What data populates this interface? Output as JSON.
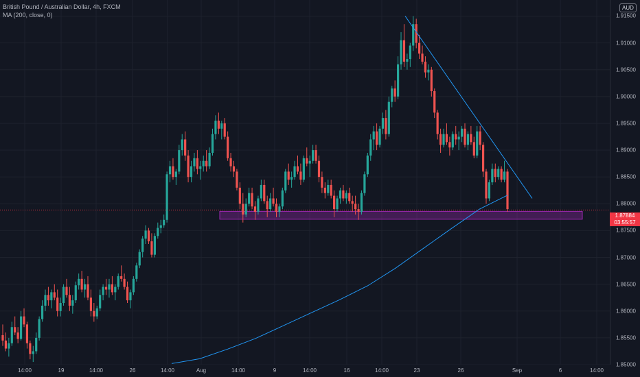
{
  "legend": {
    "symbol": "British Pound / Australian Dollar, 4h, FXCM",
    "indicator": "MA (200, close, 0)"
  },
  "currency_badge": "AUD",
  "last_price": {
    "value": "1.87884",
    "countdown": "03:55:57",
    "color": "#f23645"
  },
  "colors": {
    "up": "#26a69a",
    "down": "#ef5350",
    "ma": "#2196f3",
    "zone": "#9c27b0",
    "trendline": "#2196f3",
    "background": "#131722",
    "grid": "#1e222d"
  },
  "chart_data": {
    "type": "candlestick",
    "y_axis": {
      "ylim": [
        1.85,
        1.918
      ],
      "ticks": [
        "1.85000",
        "1.85500",
        "1.86000",
        "1.86500",
        "1.87000",
        "1.87500",
        "1.88000",
        "1.88500",
        "1.89000",
        "1.89500",
        "1.90000",
        "1.90500",
        "1.91000",
        "1.91500"
      ]
    },
    "x_axis": {
      "ticks": [
        "14:00",
        "19",
        "14:00",
        "26",
        "14:00",
        "Aug",
        "14:00",
        "9",
        "14:00",
        "16",
        "14:00",
        "23",
        "26",
        "Sep",
        "6",
        "14:00"
      ]
    },
    "ohlc": [
      [
        1.8555,
        1.8575,
        1.8535,
        1.8545
      ],
      [
        1.8545,
        1.856,
        1.8525,
        1.853
      ],
      [
        1.853,
        1.855,
        1.8515,
        1.854
      ],
      [
        1.854,
        1.858,
        1.8535,
        1.857
      ],
      [
        1.857,
        1.859,
        1.8555,
        1.856
      ],
      [
        1.856,
        1.857,
        1.854,
        1.8548
      ],
      [
        1.8548,
        1.86,
        1.8545,
        1.859
      ],
      [
        1.859,
        1.8605,
        1.857,
        1.8575
      ],
      [
        1.8575,
        1.858,
        1.853,
        1.854
      ],
      [
        1.854,
        1.8545,
        1.851,
        1.852
      ],
      [
        1.852,
        1.8535,
        1.8505,
        1.8525
      ],
      [
        1.8525,
        1.856,
        1.852,
        1.855
      ],
      [
        1.855,
        1.859,
        1.8545,
        1.8585
      ],
      [
        1.8585,
        1.862,
        1.858,
        1.861
      ],
      [
        1.861,
        1.864,
        1.86,
        1.863
      ],
      [
        1.863,
        1.8645,
        1.861,
        1.862
      ],
      [
        1.862,
        1.864,
        1.8605,
        1.8635
      ],
      [
        1.8635,
        1.865,
        1.862,
        1.8625
      ],
      [
        1.8625,
        1.864,
        1.859,
        1.86
      ],
      [
        1.86,
        1.8625,
        1.859,
        1.8615
      ],
      [
        1.8615,
        1.865,
        1.861,
        1.8645
      ],
      [
        1.8645,
        1.866,
        1.8625,
        1.863
      ],
      [
        1.863,
        1.8645,
        1.86,
        1.861
      ],
      [
        1.861,
        1.863,
        1.8595,
        1.862
      ],
      [
        1.862,
        1.8655,
        1.8615,
        1.8648
      ],
      [
        1.8648,
        1.867,
        1.864,
        1.866
      ],
      [
        1.866,
        1.8675,
        1.8635,
        1.864
      ],
      [
        1.864,
        1.866,
        1.8625,
        1.865
      ],
      [
        1.865,
        1.8665,
        1.862,
        1.8625
      ],
      [
        1.8625,
        1.864,
        1.859,
        1.86
      ],
      [
        1.86,
        1.8615,
        1.858,
        1.859
      ],
      [
        1.859,
        1.861,
        1.8585,
        1.8605
      ],
      [
        1.8605,
        1.864,
        1.86,
        1.863
      ],
      [
        1.863,
        1.865,
        1.862,
        1.8645
      ],
      [
        1.8645,
        1.866,
        1.863,
        1.864
      ],
      [
        1.864,
        1.866,
        1.8625,
        1.865
      ],
      [
        1.865,
        1.8665,
        1.863,
        1.8635
      ],
      [
        1.8635,
        1.865,
        1.862,
        1.8645
      ],
      [
        1.8645,
        1.867,
        1.864,
        1.8665
      ],
      [
        1.8665,
        1.8685,
        1.8655,
        1.866
      ],
      [
        1.866,
        1.867,
        1.864,
        1.8645
      ],
      [
        1.8645,
        1.8655,
        1.8615,
        1.862
      ],
      [
        1.862,
        1.864,
        1.8605,
        1.8635
      ],
      [
        1.8635,
        1.8665,
        1.863,
        1.866
      ],
      [
        1.866,
        1.869,
        1.8655,
        1.8685
      ],
      [
        1.8685,
        1.8715,
        1.868,
        1.871
      ],
      [
        1.871,
        1.874,
        1.87,
        1.8735
      ],
      [
        1.8735,
        1.876,
        1.8725,
        1.875
      ],
      [
        1.875,
        1.8755,
        1.8725,
        1.873
      ],
      [
        1.873,
        1.8745,
        1.87,
        1.8705
      ],
      [
        1.8705,
        1.8745,
        1.87,
        1.874
      ],
      [
        1.874,
        1.8765,
        1.8735,
        1.8755
      ],
      [
        1.8755,
        1.877,
        1.8745,
        1.876
      ],
      [
        1.876,
        1.878,
        1.8755,
        1.877
      ],
      [
        1.877,
        1.886,
        1.8765,
        1.8855
      ],
      [
        1.8855,
        1.888,
        1.884,
        1.887
      ],
      [
        1.887,
        1.8885,
        1.8845,
        1.885
      ],
      [
        1.885,
        1.8865,
        1.8835,
        1.886
      ],
      [
        1.886,
        1.891,
        1.8855,
        1.89
      ],
      [
        1.89,
        1.893,
        1.889,
        1.892
      ],
      [
        1.892,
        1.8935,
        1.888,
        1.889
      ],
      [
        1.889,
        1.89,
        1.884,
        1.885
      ],
      [
        1.885,
        1.888,
        1.884,
        1.887
      ],
      [
        1.887,
        1.8895,
        1.886,
        1.8885
      ],
      [
        1.8885,
        1.89,
        1.8855,
        1.8865
      ],
      [
        1.8865,
        1.888,
        1.8845,
        1.887
      ],
      [
        1.887,
        1.889,
        1.886,
        1.888
      ],
      [
        1.888,
        1.89,
        1.886,
        1.887
      ],
      [
        1.887,
        1.8905,
        1.8865,
        1.8895
      ],
      [
        1.8895,
        1.894,
        1.889,
        1.893
      ],
      [
        1.893,
        1.8965,
        1.892,
        1.8955
      ],
      [
        1.8955,
        1.897,
        1.893,
        1.894
      ],
      [
        1.894,
        1.8955,
        1.892,
        1.895
      ],
      [
        1.895,
        1.896,
        1.892,
        1.8925
      ],
      [
        1.8925,
        1.8935,
        1.888,
        1.8885
      ],
      [
        1.8885,
        1.8895,
        1.886,
        1.887
      ],
      [
        1.887,
        1.888,
        1.885,
        1.886
      ],
      [
        1.886,
        1.8865,
        1.8825,
        1.883
      ],
      [
        1.883,
        1.884,
        1.879,
        1.88
      ],
      [
        1.88,
        1.882,
        1.8765,
        1.878
      ],
      [
        1.878,
        1.881,
        1.8775,
        1.88
      ],
      [
        1.88,
        1.883,
        1.8795,
        1.882
      ],
      [
        1.882,
        1.883,
        1.879,
        1.8795
      ],
      [
        1.8795,
        1.8805,
        1.877,
        1.8785
      ],
      [
        1.8785,
        1.8815,
        1.878,
        1.881
      ],
      [
        1.881,
        1.8845,
        1.8805,
        1.8835
      ],
      [
        1.8835,
        1.8845,
        1.88,
        1.8805
      ],
      [
        1.8805,
        1.8815,
        1.8775,
        1.879
      ],
      [
        1.879,
        1.882,
        1.8785,
        1.881
      ],
      [
        1.881,
        1.883,
        1.8795,
        1.88
      ],
      [
        1.88,
        1.881,
        1.8775,
        1.8785
      ],
      [
        1.8785,
        1.88,
        1.8775,
        1.8795
      ],
      [
        1.8795,
        1.883,
        1.879,
        1.8825
      ],
      [
        1.8825,
        1.8865,
        1.882,
        1.886
      ],
      [
        1.886,
        1.8875,
        1.8835,
        1.8845
      ],
      [
        1.8845,
        1.886,
        1.883,
        1.885
      ],
      [
        1.885,
        1.888,
        1.8845,
        1.887
      ],
      [
        1.887,
        1.889,
        1.8855,
        1.886
      ],
      [
        1.886,
        1.8875,
        1.8835,
        1.8845
      ],
      [
        1.8845,
        1.889,
        1.884,
        1.8885
      ],
      [
        1.8885,
        1.8905,
        1.887,
        1.8875
      ],
      [
        1.8875,
        1.889,
        1.885,
        1.888
      ],
      [
        1.888,
        1.891,
        1.8875,
        1.89
      ],
      [
        1.89,
        1.891,
        1.8875,
        1.888
      ],
      [
        1.888,
        1.889,
        1.884,
        1.885
      ],
      [
        1.885,
        1.886,
        1.882,
        1.883
      ],
      [
        1.883,
        1.884,
        1.881,
        1.882
      ],
      [
        1.882,
        1.8845,
        1.8815,
        1.8835
      ],
      [
        1.8835,
        1.8845,
        1.881,
        1.8815
      ],
      [
        1.8815,
        1.8825,
        1.8775,
        1.879
      ],
      [
        1.879,
        1.8815,
        1.8785,
        1.881
      ],
      [
        1.881,
        1.883,
        1.88,
        1.8825
      ],
      [
        1.8825,
        1.8835,
        1.8805,
        1.881
      ],
      [
        1.881,
        1.8825,
        1.88,
        1.882
      ],
      [
        1.882,
        1.883,
        1.88,
        1.8805
      ],
      [
        1.8805,
        1.8815,
        1.8785,
        1.88
      ],
      [
        1.88,
        1.8815,
        1.878,
        1.879
      ],
      [
        1.879,
        1.88,
        1.877,
        1.8785
      ],
      [
        1.8785,
        1.8825,
        1.878,
        1.882
      ],
      [
        1.882,
        1.886,
        1.8815,
        1.8855
      ],
      [
        1.8855,
        1.8895,
        1.885,
        1.889
      ],
      [
        1.889,
        1.893,
        1.888,
        1.892
      ],
      [
        1.892,
        1.8945,
        1.89,
        1.8935
      ],
      [
        1.8935,
        1.895,
        1.89,
        1.891
      ],
      [
        1.891,
        1.8945,
        1.8905,
        1.894
      ],
      [
        1.894,
        1.897,
        1.893,
        1.896
      ],
      [
        1.896,
        1.8975,
        1.892,
        1.893
      ],
      [
        1.893,
        1.9,
        1.8925,
        1.899
      ],
      [
        1.899,
        1.902,
        1.898,
        1.9015
      ],
      [
        1.9015,
        1.903,
        1.899,
        1.9
      ],
      [
        1.9,
        1.9075,
        1.8995,
        1.906
      ],
      [
        1.906,
        1.912,
        1.905,
        1.9105
      ],
      [
        1.9105,
        1.9135,
        1.9055,
        1.9065
      ],
      [
        1.9065,
        1.908,
        1.905,
        1.907
      ],
      [
        1.907,
        1.91,
        1.9055,
        1.9095
      ],
      [
        1.9095,
        1.915,
        1.9085,
        1.9135
      ],
      [
        1.9135,
        1.9145,
        1.909,
        1.91
      ],
      [
        1.91,
        1.9115,
        1.907,
        1.908
      ],
      [
        1.908,
        1.9095,
        1.906,
        1.9065
      ],
      [
        1.9065,
        1.9075,
        1.9035,
        1.9045
      ],
      [
        1.9045,
        1.906,
        1.903,
        1.905
      ],
      [
        1.905,
        1.9055,
        1.9,
        1.901
      ],
      [
        1.901,
        1.9015,
        1.896,
        1.897
      ],
      [
        1.897,
        1.8975,
        1.892,
        1.893
      ],
      [
        1.893,
        1.894,
        1.8895,
        1.891
      ],
      [
        1.891,
        1.894,
        1.8905,
        1.893
      ],
      [
        1.893,
        1.895,
        1.891,
        1.8915
      ],
      [
        1.8915,
        1.8925,
        1.889,
        1.8905
      ],
      [
        1.8905,
        1.8935,
        1.89,
        1.893
      ],
      [
        1.893,
        1.8945,
        1.891,
        1.892
      ],
      [
        1.892,
        1.8935,
        1.89,
        1.8925
      ],
      [
        1.8925,
        1.8945,
        1.8915,
        1.894
      ],
      [
        1.894,
        1.895,
        1.8905,
        1.891
      ],
      [
        1.891,
        1.8935,
        1.89,
        1.893
      ],
      [
        1.893,
        1.8945,
        1.891,
        1.8915
      ],
      [
        1.8915,
        1.8925,
        1.8885,
        1.889
      ],
      [
        1.889,
        1.8945,
        1.8885,
        1.8935
      ],
      [
        1.8935,
        1.8945,
        1.89,
        1.891
      ],
      [
        1.891,
        1.8915,
        1.885,
        1.886
      ],
      [
        1.886,
        1.8865,
        1.88,
        1.881
      ],
      [
        1.881,
        1.8845,
        1.8805,
        1.884
      ],
      [
        1.884,
        1.8875,
        1.8835,
        1.8865
      ],
      [
        1.8865,
        1.8875,
        1.884,
        1.885
      ],
      [
        1.885,
        1.887,
        1.8845,
        1.8865
      ],
      [
        1.8865,
        1.887,
        1.884,
        1.8845
      ],
      [
        1.8845,
        1.888,
        1.884,
        1.886
      ],
      [
        1.886,
        1.8865,
        1.8785,
        1.879
      ]
    ],
    "ma200": [
      [
        1.8502,
        1.8511,
        1.8529,
        1.8549,
        1.8573,
        1.8597,
        1.8621,
        1.8647,
        1.868,
        1.8717,
        1.8754,
        1.879,
        1.8816
      ]
    ],
    "support_zone": {
      "top": 1.8782,
      "bottom": 1.8775
    },
    "trendline": {
      "start": 1.915,
      "end": 1.881
    }
  }
}
